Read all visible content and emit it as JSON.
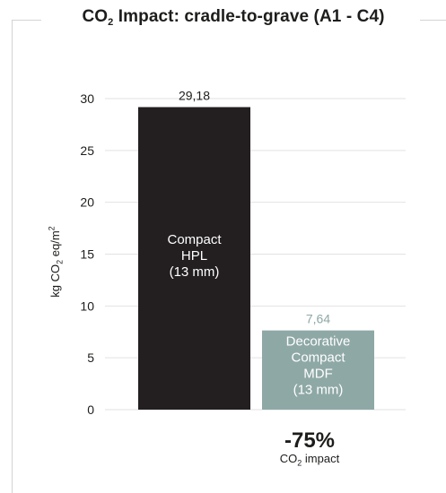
{
  "title": {
    "prefix": "CO",
    "sub": "2",
    "suffix": " Impact: cradle-to-grave (A1 - C4)"
  },
  "yaxis": {
    "label_prefix": "kg CO",
    "label_sub": "2",
    "label_mid": " eq/m",
    "label_sup": "2"
  },
  "reduction": {
    "value": "-75%",
    "caption_prefix": "CO",
    "caption_sub": "2",
    "caption_suffix": " impact"
  },
  "colors": {
    "text": "#1d1d1b",
    "grid": "#e2e2e2",
    "frame": "#d4d4d4"
  },
  "chart_data": {
    "type": "bar",
    "categories": [
      "Compact HPL (13 mm)",
      "Decorative Compact MDF (13 mm)"
    ],
    "bar_labels": [
      [
        "Compact",
        "HPL",
        "(13 mm)"
      ],
      [
        "Decorative",
        "Compact",
        "MDF",
        "(13 mm)"
      ]
    ],
    "values": [
      29.18,
      7.64
    ],
    "value_labels": [
      "29,18",
      "7,64"
    ],
    "bar_colors": [
      "#231f20",
      "#8ea8a6"
    ],
    "value_label_colors": [
      "#1d1d1b",
      "#8ea8a6"
    ],
    "ylim": [
      0,
      30
    ],
    "yticks": [
      0,
      5,
      10,
      15,
      20,
      25,
      30
    ],
    "ylabel": "kg CO2 eq/m2",
    "grid": true
  }
}
